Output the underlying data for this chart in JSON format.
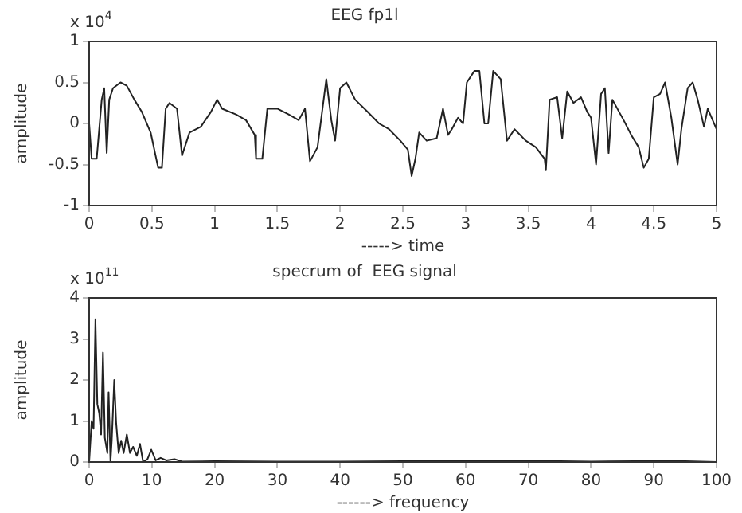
{
  "chart_data": [
    {
      "type": "line",
      "title": "EEG fp1l",
      "xlabel": "-----> time",
      "ylabel": "amplitude",
      "annotations": [
        "x 10$^{4}$"
      ],
      "xlim": [
        0,
        5
      ],
      "xticks": [
        0,
        0.5,
        1,
        1.5,
        2,
        2.5,
        3,
        3.5,
        4,
        4.5,
        5
      ],
      "ylim": [
        -1,
        1
      ],
      "yticks": [
        -1,
        -0.5,
        0,
        0.5,
        1
      ],
      "grid": false,
      "legend": false,
      "marker": "none",
      "line_style": "solid",
      "series": [
        {
          "color": "#222222",
          "x": [
            0,
            0.02,
            0.06,
            0.1,
            0.12,
            0.14,
            0.16,
            0.19,
            0.25,
            0.3,
            0.36,
            0.42,
            0.49,
            0.55,
            0.58,
            0.61,
            0.64,
            0.7,
            0.74,
            0.8,
            0.89,
            0.97,
            1.02,
            1.06,
            1.17,
            1.25,
            1.32,
            1.33,
            1.38,
            1.42,
            1.5,
            1.59,
            1.67,
            1.72,
            1.76,
            1.82,
            1.89,
            1.93,
            1.96,
            2.0,
            2.05,
            2.12,
            2.22,
            2.31,
            2.39,
            2.48,
            2.54,
            2.57,
            2.6,
            2.63,
            2.69,
            2.77,
            2.82,
            2.86,
            2.89,
            2.94,
            2.98,
            3.01,
            3.07,
            3.11,
            3.15,
            3.18,
            3.22,
            3.28,
            3.33,
            3.39,
            3.48,
            3.56,
            3.63,
            3.64,
            3.67,
            3.73,
            3.77,
            3.81,
            3.86,
            3.92,
            3.97,
            4.0,
            4.04,
            4.08,
            4.11,
            4.14,
            4.17,
            4.26,
            4.32,
            4.38,
            4.42,
            4.46,
            4.5,
            4.55,
            4.59,
            4.64,
            4.69,
            4.72,
            4.77,
            4.81,
            4.85,
            4.9,
            4.93,
            5.0
          ],
          "values": [
            0,
            -0.43,
            -0.43,
            0.29,
            0.43,
            -0.36,
            0.29,
            0.43,
            0.5,
            0.46,
            0.29,
            0.14,
            -0.11,
            -0.54,
            -0.54,
            0.18,
            0.25,
            0.18,
            -0.39,
            -0.11,
            -0.04,
            0.14,
            0.29,
            0.18,
            0.11,
            0.04,
            -0.14,
            -0.43,
            -0.43,
            0.18,
            0.18,
            0.11,
            0.04,
            0.18,
            -0.46,
            -0.29,
            0.54,
            0.04,
            -0.21,
            0.43,
            0.5,
            0.29,
            0.14,
            0,
            -0.07,
            -0.21,
            -0.32,
            -0.64,
            -0.43,
            -0.11,
            -0.21,
            -0.18,
            0.18,
            -0.14,
            -0.07,
            0.07,
            0,
            0.5,
            0.64,
            0.64,
            0,
            0,
            0.64,
            0.54,
            -0.21,
            -0.07,
            -0.21,
            -0.29,
            -0.43,
            -0.57,
            0.29,
            0.32,
            -0.18,
            0.39,
            0.25,
            0.32,
            0.14,
            0.07,
            -0.5,
            0.36,
            0.43,
            -0.36,
            0.29,
            0.04,
            -0.14,
            -0.29,
            -0.54,
            -0.43,
            0.32,
            0.36,
            0.5,
            0.07,
            -0.5,
            -0.07,
            0.43,
            0.5,
            0.29,
            -0.04,
            0.18,
            -0.07
          ]
        }
      ]
    },
    {
      "type": "line",
      "title": "specrum of  EEG signal",
      "xlabel": "------> frequency",
      "ylabel": "amplitude",
      "annotations": [
        "x 10$^{11}$"
      ],
      "xlim": [
        0,
        100
      ],
      "xticks": [
        0,
        10,
        20,
        30,
        40,
        50,
        60,
        70,
        80,
        90,
        100
      ],
      "ylim": [
        0,
        4
      ],
      "yticks": [
        0,
        1,
        2,
        3,
        4
      ],
      "grid": false,
      "legend": false,
      "marker": "none",
      "line_style": "solid",
      "series": [
        {
          "color": "#222222",
          "x": [
            0,
            0.4,
            0.7,
            1.0,
            1.3,
            1.6,
            1.9,
            2.2,
            2.5,
            2.9,
            3.1,
            3.4,
            3.6,
            4.0,
            4.3,
            4.7,
            5.1,
            5.5,
            6.0,
            6.5,
            7.0,
            7.6,
            8.1,
            8.6,
            9.3,
            9.9,
            10.6,
            11.4,
            12.3,
            13.6,
            14.8,
            20,
            30,
            40,
            50,
            57,
            60,
            70,
            80,
            87,
            95,
            100
          ],
          "values": [
            0,
            1.0,
            0.81,
            3.48,
            1.41,
            1.19,
            0.67,
            2.67,
            0.59,
            0.22,
            1.7,
            0,
            0.52,
            2.0,
            0.96,
            0.22,
            0.52,
            0.22,
            0.67,
            0.22,
            0.37,
            0.15,
            0.44,
            0,
            0.07,
            0.3,
            0.04,
            0.1,
            0.04,
            0.07,
            0.01,
            0.02,
            0.01,
            0.01,
            0.02,
            0.02,
            0.02,
            0.03,
            0.01,
            0.02,
            0.02,
            0
          ]
        }
      ]
    }
  ]
}
